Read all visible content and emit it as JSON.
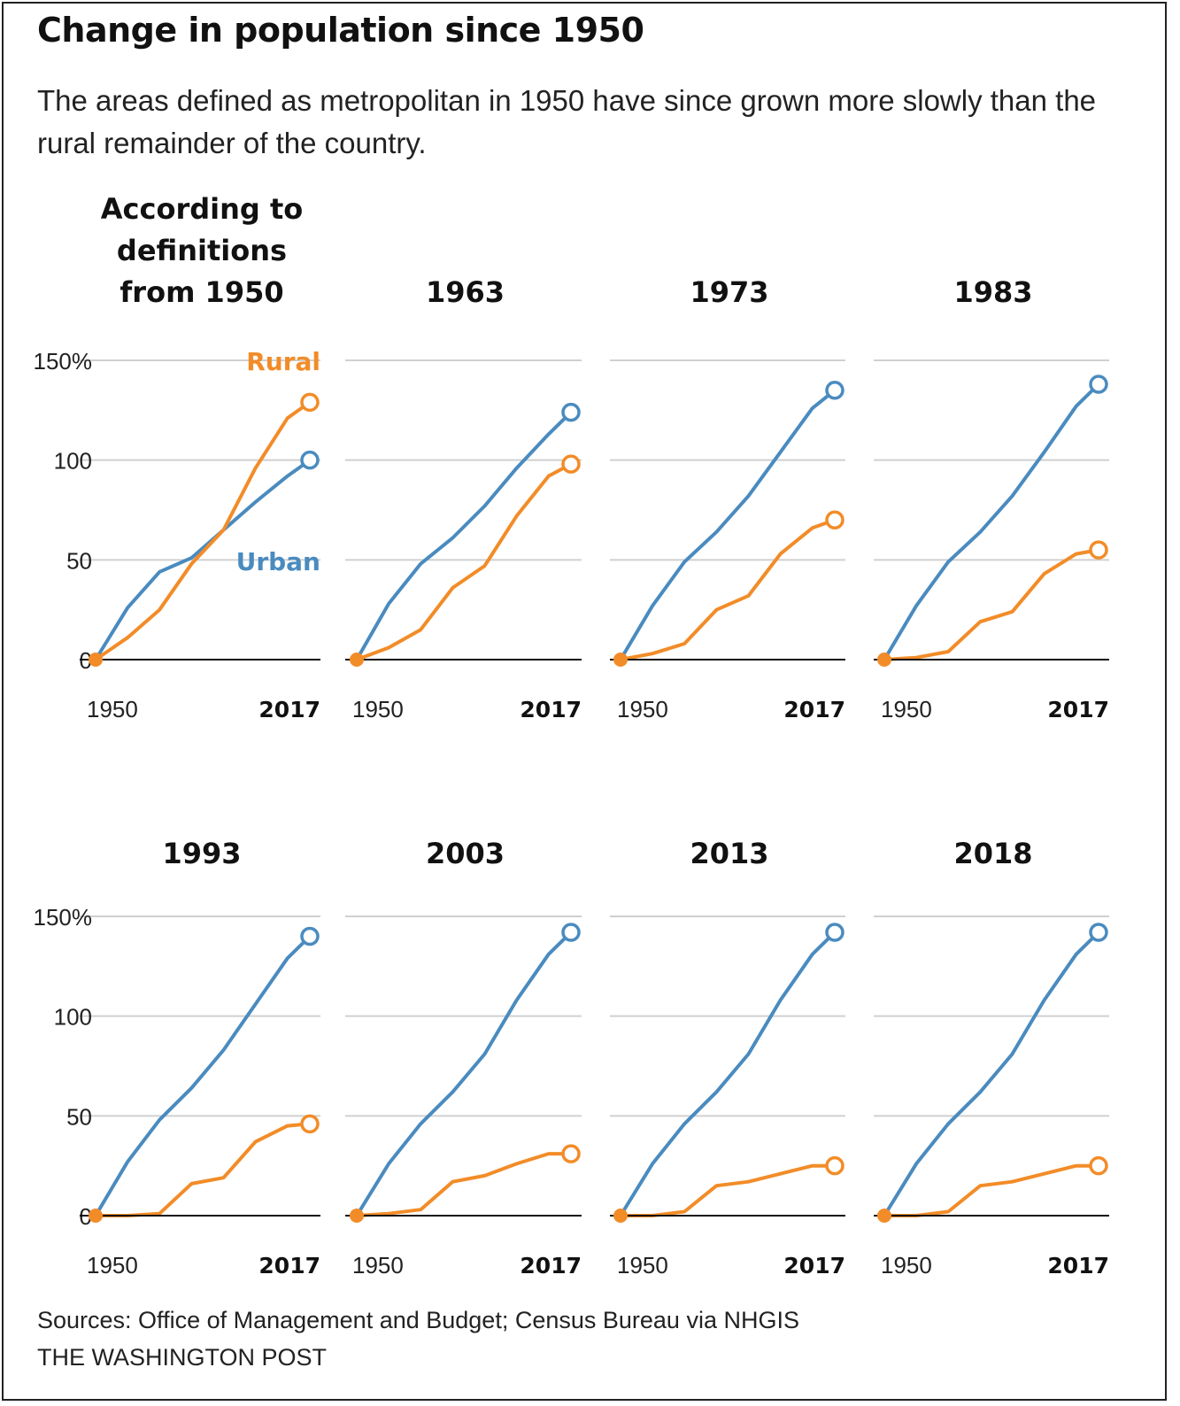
{
  "title": "Change in population since 1950",
  "subtitle": "The areas defined as metropolitan in 1950 have since grown more slowly than the rural remainder of the country.",
  "sources": "Sources: Office of Management and Budget; Census Bureau via NHGIS",
  "credit": "THE WASHINGTON POST",
  "colors": {
    "urban": "#4a8bbf",
    "rural": "#f28c28",
    "grid": "#d0d0d0",
    "baseline": "#111111"
  },
  "chart_data": {
    "type": "line",
    "x": [
      1950,
      1960,
      1970,
      1980,
      1990,
      2000,
      2010,
      2017
    ],
    "x_tick_labels": [
      "1950",
      "2017"
    ],
    "y_ticks": [
      "150%",
      "100",
      "50",
      "0"
    ],
    "ylim": [
      0,
      150
    ],
    "labels": {
      "rural": "Rural",
      "urban": "Urban"
    },
    "panels": [
      {
        "title": "According to definitions from 1950",
        "series": [
          {
            "key": "urban",
            "values": [
              0,
              26,
              44,
              51,
              65,
              79,
              92,
              100
            ]
          },
          {
            "key": "rural",
            "values": [
              0,
              11,
              25,
              48,
              65,
              96,
              121,
              129
            ]
          }
        ]
      },
      {
        "title": "1963",
        "series": [
          {
            "key": "urban",
            "values": [
              0,
              28,
              48,
              61,
              77,
              96,
              113,
              124
            ]
          },
          {
            "key": "rural",
            "values": [
              0,
              6,
              15,
              36,
              47,
              72,
              92,
              98
            ]
          }
        ]
      },
      {
        "title": "1973",
        "series": [
          {
            "key": "urban",
            "values": [
              0,
              27,
              49,
              64,
              82,
              104,
              126,
              135
            ]
          },
          {
            "key": "rural",
            "values": [
              0,
              3,
              8,
              25,
              32,
              53,
              66,
              70
            ]
          }
        ]
      },
      {
        "title": "1983",
        "series": [
          {
            "key": "urban",
            "values": [
              0,
              27,
              49,
              64,
              82,
              104,
              127,
              138
            ]
          },
          {
            "key": "rural",
            "values": [
              0,
              1,
              4,
              19,
              24,
              43,
              53,
              55
            ]
          }
        ]
      },
      {
        "title": "1993",
        "series": [
          {
            "key": "urban",
            "values": [
              0,
              27,
              48,
              64,
              83,
              106,
              129,
              140
            ]
          },
          {
            "key": "rural",
            "values": [
              0,
              0,
              1,
              16,
              19,
              37,
              45,
              46
            ]
          }
        ]
      },
      {
        "title": "2003",
        "series": [
          {
            "key": "urban",
            "values": [
              0,
              26,
              46,
              62,
              81,
              108,
              131,
              142
            ]
          },
          {
            "key": "rural",
            "values": [
              0,
              1,
              3,
              17,
              20,
              26,
              31,
              31
            ]
          }
        ]
      },
      {
        "title": "2013",
        "series": [
          {
            "key": "urban",
            "values": [
              0,
              26,
              46,
              62,
              81,
              108,
              131,
              142
            ]
          },
          {
            "key": "rural",
            "values": [
              0,
              0,
              2,
              15,
              17,
              21,
              25,
              25
            ]
          }
        ]
      },
      {
        "title": "2018",
        "series": [
          {
            "key": "urban",
            "values": [
              0,
              26,
              46,
              62,
              81,
              108,
              131,
              142
            ]
          },
          {
            "key": "rural",
            "values": [
              0,
              0,
              2,
              15,
              17,
              21,
              25,
              25
            ]
          }
        ]
      }
    ]
  }
}
